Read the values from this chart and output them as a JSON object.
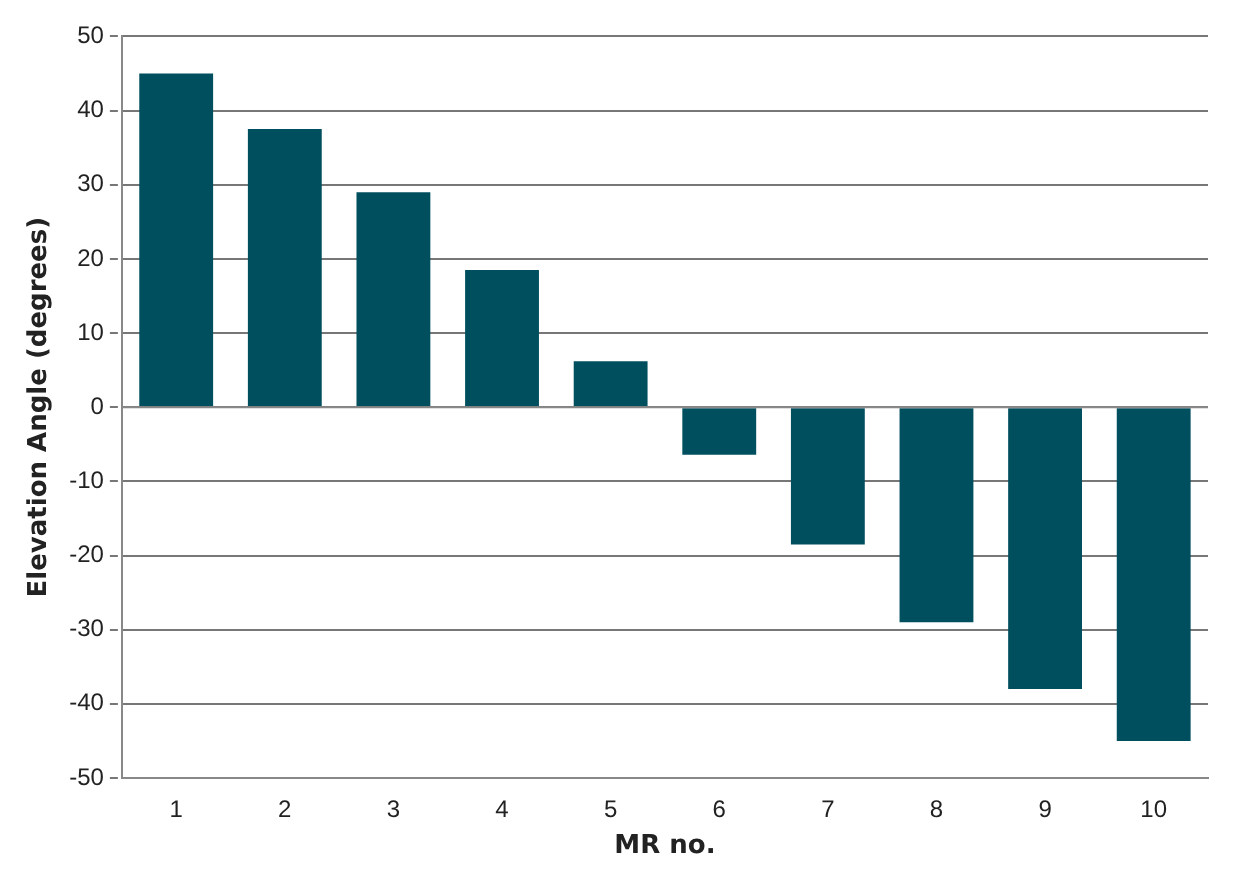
{
  "chart_data": {
    "type": "bar",
    "xlabel": "MR no.",
    "ylabel": "Elevation Angle (degrees)",
    "categories": [
      "1",
      "2",
      "3",
      "4",
      "5",
      "6",
      "7",
      "8",
      "9",
      "10"
    ],
    "values": [
      45,
      37.5,
      29,
      18.5,
      6.2,
      -6.4,
      -18.5,
      -29,
      -38,
      -45
    ],
    "color": "#004f5f",
    "ylim": [
      -50,
      50
    ],
    "yticks": [
      -50,
      -40,
      -30,
      -20,
      -10,
      0,
      10,
      20,
      30,
      40,
      50
    ],
    "grid": "y",
    "legend": false
  }
}
